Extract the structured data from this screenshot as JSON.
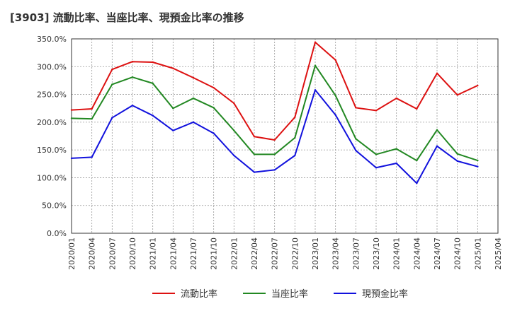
{
  "chart_data": {
    "type": "line",
    "title": "[3903]  流動比率、当座比率、現預金比率の推移",
    "xlabel": "",
    "ylabel": "",
    "ylim": [
      0,
      350
    ],
    "y_ticks": [
      0,
      50,
      100,
      150,
      200,
      250,
      300,
      350
    ],
    "y_tick_labels": [
      "0.0%",
      "50.0%",
      "100.0%",
      "150.0%",
      "200.0%",
      "250.0%",
      "300.0%",
      "350.0%"
    ],
    "x_tick_labels": [
      "2020/01",
      "2020/04",
      "2020/07",
      "2020/10",
      "2021/01",
      "2021/04",
      "2021/07",
      "2021/10",
      "2022/01",
      "2022/04",
      "2022/07",
      "2022/10",
      "2023/01",
      "2023/04",
      "2023/07",
      "2023/10",
      "2024/01",
      "2024/04",
      "2024/07",
      "2024/10",
      "2025/01",
      "2025/04"
    ],
    "categories": [
      "2020/01",
      "2020/04",
      "2020/07",
      "2020/10",
      "2021/01",
      "2021/04",
      "2021/07",
      "2021/10",
      "2022/01",
      "2022/04",
      "2022/07",
      "2022/10",
      "2023/01",
      "2023/04",
      "2023/07",
      "2023/10",
      "2024/01",
      "2024/04",
      "2024/07",
      "2024/10",
      "2025/01"
    ],
    "grid": true,
    "legend_position": "bottom",
    "series": [
      {
        "name": "流動比率",
        "color": "#dd1111",
        "values": [
          222,
          224,
          295,
          309,
          308,
          297,
          280,
          262,
          234,
          174,
          168,
          209,
          344,
          312,
          226,
          221,
          243,
          224,
          288,
          249,
          266
        ]
      },
      {
        "name": "当座比率",
        "color": "#228822",
        "values": [
          207,
          206,
          268,
          281,
          270,
          225,
          243,
          226,
          185,
          142,
          142,
          172,
          302,
          248,
          170,
          142,
          152,
          131,
          186,
          143,
          131
        ]
      },
      {
        "name": "現預金比率",
        "color": "#1111dd",
        "values": [
          135,
          137,
          208,
          230,
          212,
          185,
          200,
          180,
          140,
          110,
          114,
          140,
          258,
          213,
          149,
          118,
          126,
          90,
          157,
          130,
          120
        ]
      }
    ]
  }
}
